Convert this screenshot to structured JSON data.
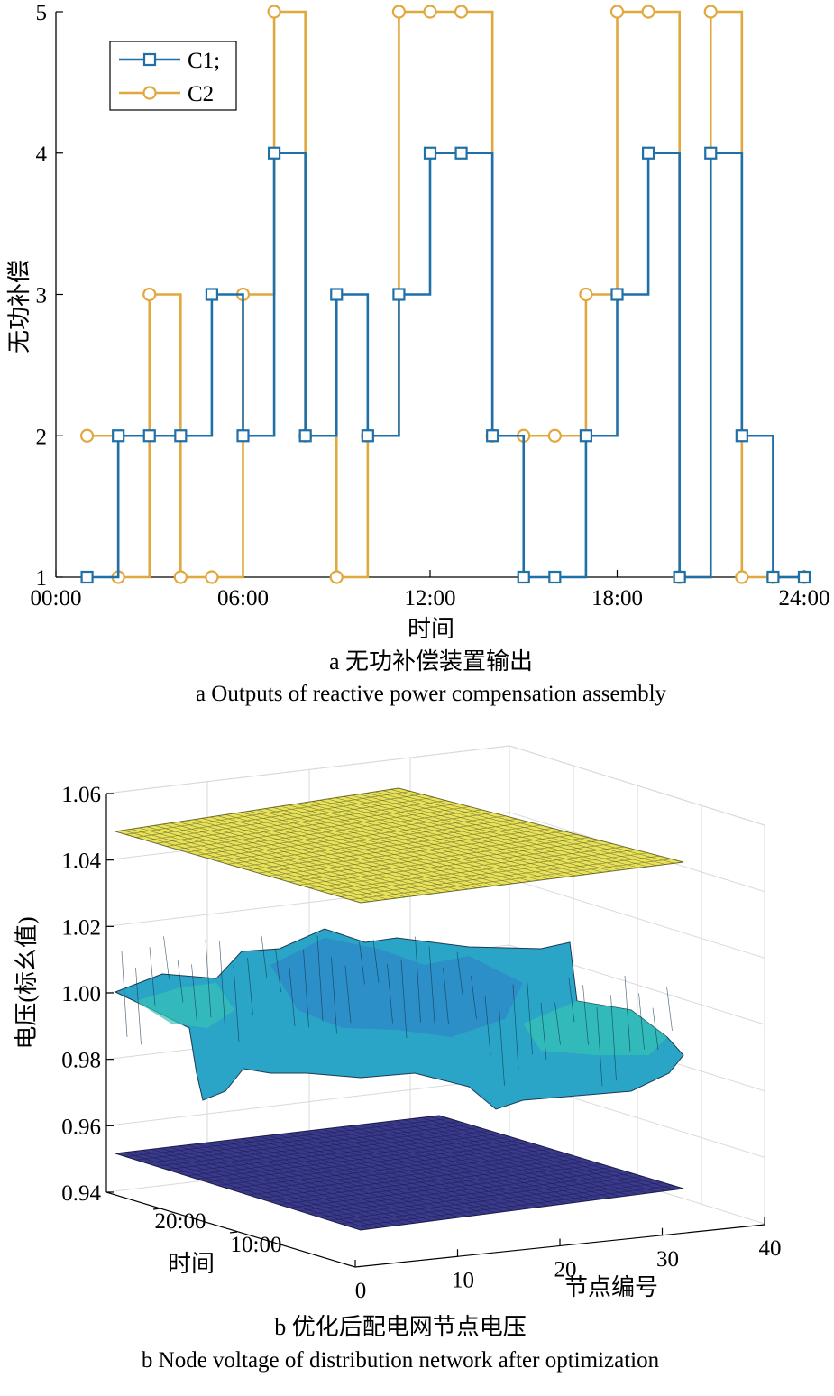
{
  "chart_data": [
    {
      "type": "line",
      "step": "post",
      "xlabel": "时间",
      "ylabel": "无功补偿",
      "x_ticks": [
        "00:00",
        "06:00",
        "12:00",
        "18:00",
        "24:00"
      ],
      "y_ticks": [
        "1",
        "2",
        "3",
        "4",
        "5"
      ],
      "xlim_hours": [
        0,
        24
      ],
      "ylim": [
        1,
        5
      ],
      "grid": false,
      "legend_position": "top-left",
      "x_hours": [
        1,
        2,
        3,
        4,
        5,
        6,
        7,
        8,
        9,
        10,
        11,
        12,
        13,
        14,
        15,
        16,
        17,
        18,
        19,
        20,
        21,
        22,
        23,
        24
      ],
      "series": [
        {
          "name": "C1;",
          "color": "#1f6fa9",
          "marker": "square",
          "values": [
            1,
            2,
            2,
            2,
            3,
            2,
            4,
            2,
            3,
            2,
            3,
            4,
            4,
            2,
            1,
            1,
            2,
            3,
            4,
            1,
            4,
            2,
            1,
            1
          ]
        },
        {
          "name": "C2",
          "color": "#e0a83e",
          "marker": "circle",
          "values": [
            2,
            1,
            3,
            1,
            1,
            3,
            5,
            2,
            1,
            2,
            5,
            5,
            5,
            2,
            2,
            2,
            3,
            5,
            5,
            1,
            5,
            1,
            1,
            1
          ]
        }
      ],
      "caption_cn": "a  无功补偿装置输出",
      "caption_en": "a  Outputs of reactive power compensation assembly"
    },
    {
      "type": "surface",
      "zlabel": "电压(标幺值)",
      "xlabel": "节点编号",
      "ylabel": "时间",
      "z_ticks": [
        "1.06",
        "1.04",
        "1.02",
        "1.00",
        "0.98",
        "0.96",
        "0.94"
      ],
      "x_ticks": [
        "0",
        "10",
        "20",
        "30",
        "40"
      ],
      "y_ticks": [
        "10:00",
        "20:00"
      ],
      "zlim": [
        0.94,
        1.06
      ],
      "xlim": [
        0,
        40
      ],
      "grid": true,
      "surfaces": [
        {
          "label": "upper voltage limit plane",
          "z": 1.05,
          "color": "#e8e35a"
        },
        {
          "label": "node voltage surface",
          "z_range": [
            0.965,
            1.005
          ],
          "color": "#2ca8c8"
        },
        {
          "label": "lower voltage limit plane",
          "z": 0.95,
          "color": "#3a3a8c"
        }
      ],
      "caption_cn": "b  优化后配电网节点电压",
      "caption_en": "b  Node voltage of distribution network after optimization"
    }
  ]
}
